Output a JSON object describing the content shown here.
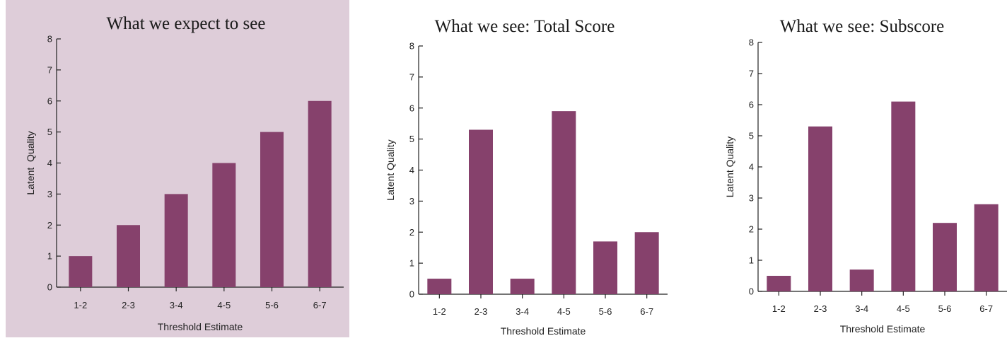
{
  "colors": {
    "bar": "#86416c",
    "highlight_background": "#decdd9"
  },
  "chart_data": [
    {
      "type": "bar",
      "title": "What we expect to see",
      "xlabel": "Threshold Estimate",
      "ylabel": "Latent  Quality",
      "categories": [
        "1-2",
        "2-3",
        "3-4",
        "4-5",
        "5-6",
        "6-7"
      ],
      "values": [
        1,
        2,
        3,
        4,
        5,
        6
      ],
      "ylim": [
        0,
        8
      ],
      "yticks": [
        "0",
        "1",
        "2",
        "3",
        "4",
        "5",
        "6",
        "7",
        "8"
      ],
      "grid": false,
      "highlighted_background": true
    },
    {
      "type": "bar",
      "title": "What we see: Total Score",
      "xlabel": "Threshold Estimate",
      "ylabel": "Latent Quality",
      "categories": [
        "1-2",
        "2-3",
        "3-4",
        "4-5",
        "5-6",
        "6-7"
      ],
      "values": [
        0.5,
        5.3,
        0.5,
        5.9,
        1.7,
        2.0
      ],
      "ylim": [
        0,
        8
      ],
      "yticks": [
        "0",
        "1",
        "2",
        "3",
        "4",
        "5",
        "6",
        "7",
        "8"
      ],
      "grid": false,
      "highlighted_background": false
    },
    {
      "type": "bar",
      "title": "What we see: Subscore",
      "xlabel": "Threshold Estimate",
      "ylabel": "Latent Quality",
      "categories": [
        "1-2",
        "2-3",
        "3-4",
        "4-5",
        "5-6",
        "6-7"
      ],
      "values": [
        0.5,
        5.3,
        0.7,
        6.1,
        2.2,
        2.8
      ],
      "ylim": [
        0,
        8
      ],
      "yticks": [
        "0",
        "1",
        "2",
        "3",
        "4",
        "5",
        "6",
        "7",
        "8"
      ],
      "grid": false,
      "highlighted_background": false
    }
  ]
}
